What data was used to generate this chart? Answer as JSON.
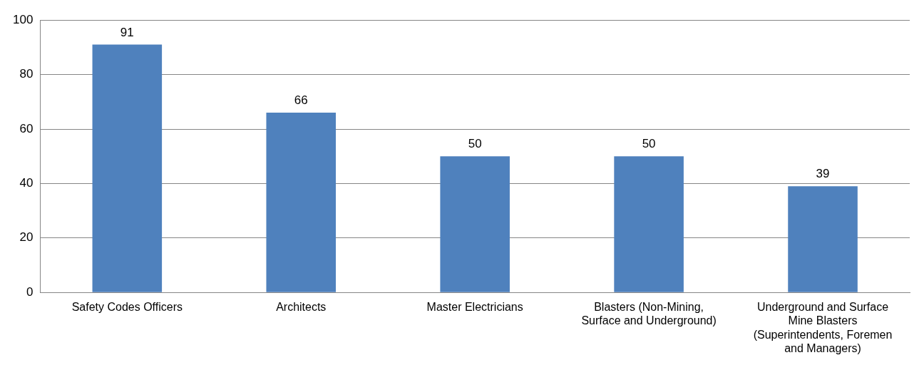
{
  "chart_data": {
    "type": "bar",
    "categories": [
      "Safety Codes Officers",
      "Architects",
      "Master Electricians",
      "Blasters (Non-Mining, Surface and Underground)",
      "Underground and Surface Mine Blasters (Superintendents, Foremen and Managers)"
    ],
    "values": [
      91,
      66,
      50,
      50,
      39
    ],
    "color": "#4f81bd",
    "ylim": [
      0,
      100
    ],
    "yticks": [
      0,
      20,
      40,
      60,
      80,
      100
    ],
    "grid": "y",
    "data_labels": true,
    "legend": false
  }
}
